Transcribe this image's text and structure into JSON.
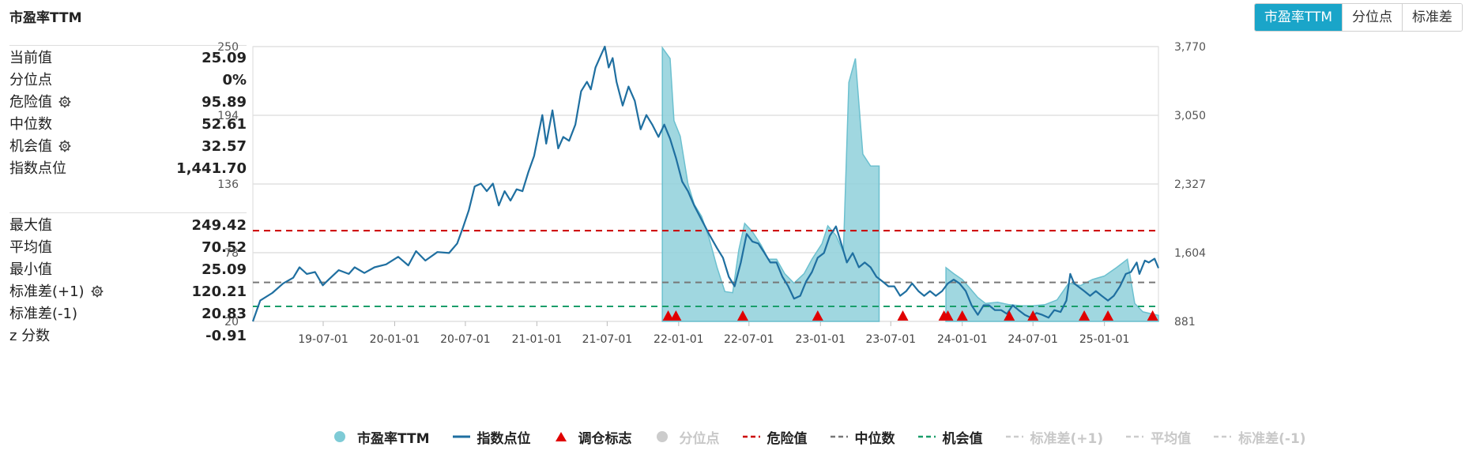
{
  "header": {
    "title": "市盈率TTM"
  },
  "tabs": [
    {
      "label": "市盈率TTM",
      "active": true
    },
    {
      "label": "分位点",
      "active": false
    },
    {
      "label": "标准差",
      "active": false
    }
  ],
  "stats_top": [
    {
      "label": "当前值",
      "value": "25.09",
      "gear": false
    },
    {
      "label": "分位点",
      "value": "0%",
      "gear": false
    },
    {
      "label": "危险值",
      "value": "95.89",
      "gear": true
    },
    {
      "label": "中位数",
      "value": "52.61",
      "gear": false
    },
    {
      "label": "机会值",
      "value": "32.57",
      "gear": true
    },
    {
      "label": "指数点位",
      "value": "1,441.70",
      "gear": false
    }
  ],
  "stats_bottom": [
    {
      "label": "最大值",
      "value": "249.42",
      "gear": false
    },
    {
      "label": "平均值",
      "value": "70.52",
      "gear": false
    },
    {
      "label": "最小值",
      "value": "25.09",
      "gear": false
    },
    {
      "label": "标准差(+1)",
      "value": "120.21",
      "gear": true
    },
    {
      "label": "标准差(-1)",
      "value": "20.83",
      "gear": false
    },
    {
      "label": "z 分数",
      "value": "-0.91",
      "gear": false
    }
  ],
  "legend": [
    {
      "label": "市盈率TTM",
      "symbol": "circle",
      "color": "#7ecbd6",
      "on": true
    },
    {
      "label": "指数点位",
      "symbol": "line",
      "color": "#1f6fa0",
      "on": true
    },
    {
      "label": "调仓标志",
      "symbol": "triangle",
      "color": "#e00000",
      "on": true
    },
    {
      "label": "分位点",
      "symbol": "circle",
      "color": "#cccccc",
      "on": false
    },
    {
      "label": "危险值",
      "symbol": "dash",
      "color": "#cc0000",
      "on": true
    },
    {
      "label": "中位数",
      "symbol": "dash",
      "color": "#777777",
      "on": true
    },
    {
      "label": "机会值",
      "symbol": "dash",
      "color": "#1a9e6a",
      "on": true
    },
    {
      "label": "标准差(+1)",
      "symbol": "dash",
      "color": "#cccccc",
      "on": false
    },
    {
      "label": "平均值",
      "symbol": "dash",
      "color": "#cccccc",
      "on": false
    },
    {
      "label": "标准差(-1)",
      "symbol": "dash",
      "color": "#cccccc",
      "on": false
    }
  ],
  "colors": {
    "accent": "#1aa5c9",
    "pe_fill": "#8fd0da",
    "pe_stroke": "#6cc0cf",
    "index_line": "#1f6fa0",
    "danger": "#cc0000",
    "median": "#777777",
    "opportunity": "#1a9e6a",
    "marker": "#e00000"
  },
  "chart_data": {
    "type": "line",
    "left_axis": {
      "ticks": [
        "250",
        "194",
        "136",
        "78",
        "20"
      ],
      "range": [
        20,
        250
      ]
    },
    "right_axis": {
      "ticks": [
        "3,770",
        "3,050",
        "2,327",
        "1,604",
        "881"
      ],
      "range": [
        881,
        3770
      ]
    },
    "x_ticks": [
      "19-07-01",
      "20-01-01",
      "20-07-01",
      "21-01-01",
      "21-07-01",
      "22-01-01",
      "22-07-01",
      "23-01-01",
      "23-07-01",
      "24-01-01",
      "24-07-01",
      "25-01-01"
    ],
    "x_range": [
      "2019-01-01",
      "2025-05-20"
    ],
    "reference_lines": {
      "danger": 95.89,
      "median": 52.61,
      "opportunity": 32.57
    },
    "series": [
      {
        "name": "市盈率TTM",
        "points": [
          [
            "2021-11-20",
            249
          ],
          [
            "2021-12-10",
            240
          ],
          [
            "2021-12-20",
            188
          ],
          [
            "2022-01-05",
            175
          ],
          [
            "2022-01-25",
            135
          ],
          [
            "2022-02-10",
            118
          ],
          [
            "2022-03-01",
            108
          ],
          [
            "2022-03-20",
            90
          ],
          [
            "2022-04-10",
            65
          ],
          [
            "2022-04-30",
            45
          ],
          [
            "2022-05-20",
            44
          ],
          [
            "2022-06-05",
            80
          ],
          [
            "2022-06-20",
            102
          ],
          [
            "2022-07-10",
            95
          ],
          [
            "2022-08-01",
            84
          ],
          [
            "2022-08-20",
            72
          ],
          [
            "2022-09-10",
            72
          ],
          [
            "2022-10-01",
            60
          ],
          [
            "2022-10-25",
            52
          ],
          [
            "2022-11-20",
            60
          ],
          [
            "2022-12-10",
            72
          ],
          [
            "2023-01-05",
            85
          ],
          [
            "2023-01-20",
            100
          ],
          [
            "2023-02-10",
            92
          ],
          [
            "2023-03-01",
            78
          ],
          [
            "2023-03-15",
            220
          ],
          [
            "2023-04-01",
            240
          ],
          [
            "2023-04-20",
            160
          ],
          [
            "2023-05-10",
            150
          ],
          [
            "2023-06-01",
            150
          ]
        ]
      },
      {
        "name": "市盈率TTM",
        "points": [
          [
            "2023-11-20",
            65
          ],
          [
            "2023-12-10",
            60
          ],
          [
            "2024-01-01",
            55
          ],
          [
            "2024-01-20",
            48
          ],
          [
            "2024-02-10",
            40
          ],
          [
            "2024-03-01",
            35
          ],
          [
            "2024-04-01",
            36
          ],
          [
            "2024-05-01",
            34
          ],
          [
            "2024-06-01",
            33
          ],
          [
            "2024-07-01",
            33
          ],
          [
            "2024-08-01",
            34
          ],
          [
            "2024-09-01",
            38
          ],
          [
            "2024-10-01",
            52
          ],
          [
            "2024-11-01",
            50
          ],
          [
            "2024-12-01",
            55
          ],
          [
            "2025-01-01",
            58
          ],
          [
            "2025-02-01",
            65
          ],
          [
            "2025-03-01",
            72
          ],
          [
            "2025-03-20",
            35
          ],
          [
            "2025-04-10",
            28
          ],
          [
            "2025-05-20",
            25
          ]
        ]
      },
      {
        "name": "指数点位",
        "points": [
          [
            "2019-01-01",
            881
          ],
          [
            "2019-01-20",
            1100
          ],
          [
            "2019-02-20",
            1180
          ],
          [
            "2019-03-20",
            1280
          ],
          [
            "2019-04-15",
            1340
          ],
          [
            "2019-05-01",
            1450
          ],
          [
            "2019-05-20",
            1380
          ],
          [
            "2019-06-10",
            1400
          ],
          [
            "2019-06-30",
            1260
          ],
          [
            "2019-07-15",
            1320
          ],
          [
            "2019-08-10",
            1420
          ],
          [
            "2019-09-05",
            1380
          ],
          [
            "2019-09-20",
            1450
          ],
          [
            "2019-10-15",
            1390
          ],
          [
            "2019-11-10",
            1450
          ],
          [
            "2019-12-10",
            1480
          ],
          [
            "2020-01-10",
            1560
          ],
          [
            "2020-02-05",
            1470
          ],
          [
            "2020-02-25",
            1620
          ],
          [
            "2020-03-20",
            1520
          ],
          [
            "2020-04-20",
            1610
          ],
          [
            "2020-05-20",
            1600
          ],
          [
            "2020-06-10",
            1700
          ],
          [
            "2020-06-25",
            1870
          ],
          [
            "2020-07-10",
            2050
          ],
          [
            "2020-07-25",
            2300
          ],
          [
            "2020-08-10",
            2330
          ],
          [
            "2020-08-25",
            2250
          ],
          [
            "2020-09-10",
            2330
          ],
          [
            "2020-09-25",
            2100
          ],
          [
            "2020-10-10",
            2250
          ],
          [
            "2020-10-25",
            2150
          ],
          [
            "2020-11-10",
            2270
          ],
          [
            "2020-11-25",
            2250
          ],
          [
            "2020-12-10",
            2450
          ],
          [
            "2020-12-25",
            2620
          ],
          [
            "2021-01-05",
            2850
          ],
          [
            "2021-01-15",
            3050
          ],
          [
            "2021-01-25",
            2750
          ],
          [
            "2021-02-10",
            3100
          ],
          [
            "2021-02-25",
            2700
          ],
          [
            "2021-03-10",
            2820
          ],
          [
            "2021-03-25",
            2780
          ],
          [
            "2021-04-10",
            2950
          ],
          [
            "2021-04-25",
            3300
          ],
          [
            "2021-05-10",
            3400
          ],
          [
            "2021-05-20",
            3320
          ],
          [
            "2021-06-01",
            3550
          ],
          [
            "2021-06-15",
            3680
          ],
          [
            "2021-06-25",
            3770
          ],
          [
            "2021-07-05",
            3550
          ],
          [
            "2021-07-15",
            3650
          ],
          [
            "2021-07-25",
            3400
          ],
          [
            "2021-08-10",
            3150
          ],
          [
            "2021-08-25",
            3350
          ],
          [
            "2021-09-10",
            3200
          ],
          [
            "2021-09-25",
            2900
          ],
          [
            "2021-10-10",
            3050
          ],
          [
            "2021-10-25",
            2950
          ],
          [
            "2021-11-10",
            2820
          ],
          [
            "2021-11-25",
            2950
          ],
          [
            "2021-12-10",
            2800
          ],
          [
            "2021-12-25",
            2600
          ],
          [
            "2022-01-10",
            2350
          ],
          [
            "2022-01-25",
            2250
          ],
          [
            "2022-02-10",
            2100
          ],
          [
            "2022-03-01",
            1950
          ],
          [
            "2022-03-20",
            1800
          ],
          [
            "2022-04-10",
            1650
          ],
          [
            "2022-04-25",
            1550
          ],
          [
            "2022-05-10",
            1350
          ],
          [
            "2022-05-25",
            1250
          ],
          [
            "2022-06-10",
            1500
          ],
          [
            "2022-06-25",
            1800
          ],
          [
            "2022-07-10",
            1720
          ],
          [
            "2022-07-25",
            1700
          ],
          [
            "2022-08-10",
            1600
          ],
          [
            "2022-08-25",
            1500
          ],
          [
            "2022-09-10",
            1500
          ],
          [
            "2022-09-25",
            1350
          ],
          [
            "2022-10-10",
            1250
          ],
          [
            "2022-10-25",
            1120
          ],
          [
            "2022-11-10",
            1150
          ],
          [
            "2022-11-25",
            1300
          ],
          [
            "2022-12-10",
            1400
          ],
          [
            "2022-12-25",
            1550
          ],
          [
            "2023-01-10",
            1600
          ],
          [
            "2023-01-25",
            1780
          ],
          [
            "2023-02-10",
            1880
          ],
          [
            "2023-02-25",
            1680
          ],
          [
            "2023-03-10",
            1500
          ],
          [
            "2023-03-25",
            1600
          ],
          [
            "2023-04-10",
            1450
          ],
          [
            "2023-04-25",
            1500
          ],
          [
            "2023-05-10",
            1450
          ],
          [
            "2023-05-25",
            1350
          ],
          [
            "2023-06-10",
            1300
          ],
          [
            "2023-06-25",
            1250
          ],
          [
            "2023-07-10",
            1250
          ],
          [
            "2023-07-25",
            1150
          ],
          [
            "2023-08-10",
            1200
          ],
          [
            "2023-08-25",
            1280
          ],
          [
            "2023-09-10",
            1200
          ],
          [
            "2023-09-25",
            1150
          ],
          [
            "2023-10-10",
            1200
          ],
          [
            "2023-10-25",
            1150
          ],
          [
            "2023-11-10",
            1200
          ],
          [
            "2023-11-25",
            1280
          ],
          [
            "2023-12-10",
            1320
          ],
          [
            "2023-12-25",
            1280
          ],
          [
            "2024-01-10",
            1200
          ],
          [
            "2024-01-25",
            1050
          ],
          [
            "2024-02-10",
            950
          ],
          [
            "2024-02-25",
            1050
          ],
          [
            "2024-03-10",
            1050
          ],
          [
            "2024-03-25",
            1000
          ],
          [
            "2024-04-10",
            1000
          ],
          [
            "2024-04-25",
            960
          ],
          [
            "2024-05-10",
            1050
          ],
          [
            "2024-05-25",
            1000
          ],
          [
            "2024-06-10",
            950
          ],
          [
            "2024-06-25",
            920
          ],
          [
            "2024-07-10",
            970
          ],
          [
            "2024-07-25",
            950
          ],
          [
            "2024-08-10",
            920
          ],
          [
            "2024-08-25",
            1000
          ],
          [
            "2024-09-10",
            980
          ],
          [
            "2024-09-25",
            1100
          ],
          [
            "2024-10-05",
            1380
          ],
          [
            "2024-10-15",
            1280
          ],
          [
            "2024-10-25",
            1250
          ],
          [
            "2024-11-10",
            1200
          ],
          [
            "2024-11-25",
            1150
          ],
          [
            "2024-12-10",
            1200
          ],
          [
            "2024-12-25",
            1150
          ],
          [
            "2025-01-10",
            1100
          ],
          [
            "2025-01-25",
            1150
          ],
          [
            "2025-02-10",
            1250
          ],
          [
            "2025-02-25",
            1380
          ],
          [
            "2025-03-10",
            1400
          ],
          [
            "2025-03-25",
            1500
          ],
          [
            "2025-04-01",
            1380
          ],
          [
            "2025-04-15",
            1520
          ],
          [
            "2025-04-25",
            1500
          ],
          [
            "2025-05-10",
            1540
          ],
          [
            "2025-05-20",
            1441.7
          ]
        ]
      }
    ],
    "markers": {
      "name": "调仓标志",
      "dates": [
        "2021-12-05",
        "2021-12-25",
        "2022-06-15",
        "2022-12-25",
        "2023-08-01",
        "2023-11-15",
        "2023-11-25",
        "2024-01-01",
        "2024-05-01",
        "2024-07-01",
        "2024-11-10",
        "2025-01-10",
        "2025-05-05"
      ]
    }
  }
}
